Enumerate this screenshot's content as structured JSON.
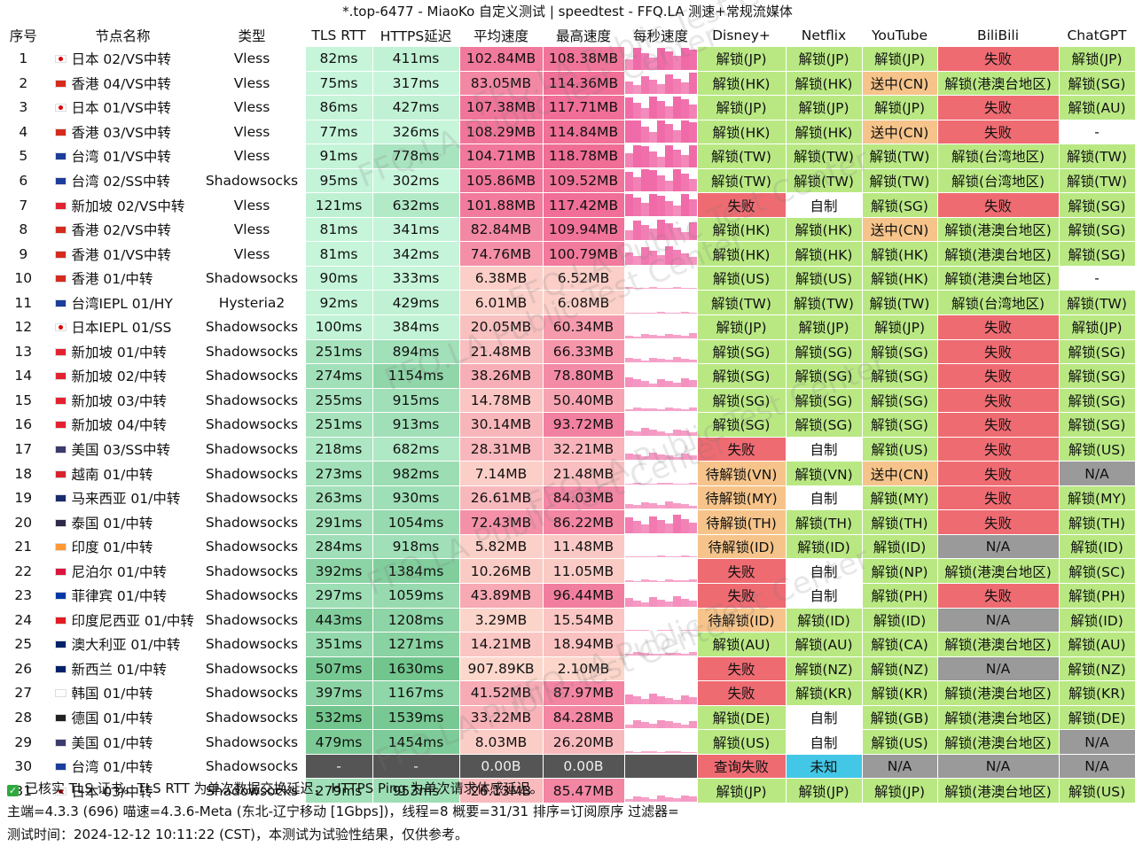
{
  "title": "*.top-6477 - MiaoKo 自定义测试 | speedtest - FFQ.LA 测速+常规流媒体",
  "headers": [
    "序号",
    "节点名称",
    "类型",
    "TLS RTT",
    "HTTPS延迟",
    "平均速度",
    "最高速度",
    "每秒速度",
    "Disney+",
    "Netflix",
    "YouTube",
    "BiliBili",
    "ChatGPT"
  ],
  "colors": {
    "green": "#b9e883",
    "red": "#ef6b72",
    "orange": "#f6c48a",
    "white": "#ffffff",
    "gray": "#9a9a9a",
    "cyan": "#43c7e6",
    "dark": "#555555"
  },
  "rows": [
    {
      "idx": "1",
      "flag": "jp",
      "name": "日本 02/VS中转",
      "type": "Vless",
      "rtt": "82ms",
      "https": "411ms",
      "avg": "102.84MB",
      "max": "108.38MB",
      "disney": "解锁(JP)",
      "netflix": "解锁(JP)",
      "youtube": "解锁(JP)",
      "bili": "失败",
      "gpt": "解锁(JP)"
    },
    {
      "idx": "2",
      "flag": "hk",
      "name": "香港 04/VS中转",
      "type": "Vless",
      "rtt": "75ms",
      "https": "317ms",
      "avg": "83.05MB",
      "max": "114.36MB",
      "disney": "解锁(HK)",
      "netflix": "解锁(HK)",
      "youtube": "送中(CN)",
      "bili": "解锁(港澳台地区)",
      "gpt": "解锁(SG)"
    },
    {
      "idx": "3",
      "flag": "jp",
      "name": "日本 01/VS中转",
      "type": "Vless",
      "rtt": "86ms",
      "https": "427ms",
      "avg": "107.38MB",
      "max": "117.71MB",
      "disney": "解锁(JP)",
      "netflix": "解锁(JP)",
      "youtube": "解锁(JP)",
      "bili": "失败",
      "gpt": "解锁(AU)"
    },
    {
      "idx": "4",
      "flag": "hk",
      "name": "香港 03/VS中转",
      "type": "Vless",
      "rtt": "77ms",
      "https": "326ms",
      "avg": "108.29MB",
      "max": "114.84MB",
      "disney": "解锁(HK)",
      "netflix": "解锁(HK)",
      "youtube": "送中(CN)",
      "bili": "失败",
      "gpt": "-"
    },
    {
      "idx": "5",
      "flag": "tw",
      "name": "台湾 01/VS中转",
      "type": "Vless",
      "rtt": "91ms",
      "https": "778ms",
      "avg": "104.71MB",
      "max": "118.78MB",
      "disney": "解锁(TW)",
      "netflix": "解锁(TW)",
      "youtube": "解锁(TW)",
      "bili": "解锁(台湾地区)",
      "gpt": "解锁(TW)"
    },
    {
      "idx": "6",
      "flag": "tw",
      "name": "台湾 02/SS中转",
      "type": "Shadowsocks",
      "rtt": "95ms",
      "https": "302ms",
      "avg": "105.86MB",
      "max": "109.52MB",
      "disney": "解锁(TW)",
      "netflix": "解锁(TW)",
      "youtube": "解锁(TW)",
      "bili": "解锁(台湾地区)",
      "gpt": "解锁(TW)"
    },
    {
      "idx": "7",
      "flag": "sg",
      "name": "新加坡 02/VS中转",
      "type": "Vless",
      "rtt": "121ms",
      "https": "632ms",
      "avg": "101.88MB",
      "max": "117.42MB",
      "disney": "失败",
      "netflix": "自制",
      "youtube": "解锁(SG)",
      "bili": "失败",
      "gpt": "解锁(SG)"
    },
    {
      "idx": "8",
      "flag": "hk",
      "name": "香港 02/VS中转",
      "type": "Vless",
      "rtt": "81ms",
      "https": "341ms",
      "avg": "82.84MB",
      "max": "109.94MB",
      "disney": "解锁(HK)",
      "netflix": "解锁(HK)",
      "youtube": "送中(CN)",
      "bili": "解锁(港澳台地区)",
      "gpt": "解锁(SG)"
    },
    {
      "idx": "9",
      "flag": "hk",
      "name": "香港 01/VS中转",
      "type": "Vless",
      "rtt": "81ms",
      "https": "342ms",
      "avg": "74.76MB",
      "max": "100.79MB",
      "disney": "解锁(HK)",
      "netflix": "解锁(HK)",
      "youtube": "解锁(HK)",
      "bili": "解锁(港澳台地区)",
      "gpt": "解锁(SG)"
    },
    {
      "idx": "10",
      "flag": "hk",
      "name": "香港 01/中转",
      "type": "Shadowsocks",
      "rtt": "90ms",
      "https": "333ms",
      "avg": "6.38MB",
      "max": "6.52MB",
      "disney": "解锁(US)",
      "netflix": "解锁(US)",
      "youtube": "解锁(HK)",
      "bili": "解锁(港澳台地区)",
      "gpt": "-"
    },
    {
      "idx": "11",
      "flag": "tw",
      "name": "台湾IEPL 01/HY",
      "type": "Hysteria2",
      "rtt": "92ms",
      "https": "429ms",
      "avg": "6.01MB",
      "max": "6.08MB",
      "disney": "解锁(TW)",
      "netflix": "解锁(TW)",
      "youtube": "解锁(TW)",
      "bili": "解锁(台湾地区)",
      "gpt": "解锁(TW)"
    },
    {
      "idx": "12",
      "flag": "jp",
      "name": "日本IEPL 01/SS",
      "type": "Shadowsocks",
      "rtt": "100ms",
      "https": "384ms",
      "avg": "20.05MB",
      "max": "60.34MB",
      "disney": "解锁(JP)",
      "netflix": "解锁(JP)",
      "youtube": "解锁(JP)",
      "bili": "失败",
      "gpt": "解锁(JP)"
    },
    {
      "idx": "13",
      "flag": "sg",
      "name": "新加坡 01/中转",
      "type": "Shadowsocks",
      "rtt": "251ms",
      "https": "894ms",
      "avg": "21.48MB",
      "max": "66.33MB",
      "disney": "解锁(SG)",
      "netflix": "解锁(SG)",
      "youtube": "解锁(SG)",
      "bili": "失败",
      "gpt": "解锁(SG)"
    },
    {
      "idx": "14",
      "flag": "sg",
      "name": "新加坡 02/中转",
      "type": "Shadowsocks",
      "rtt": "274ms",
      "https": "1154ms",
      "avg": "38.26MB",
      "max": "78.80MB",
      "disney": "解锁(SG)",
      "netflix": "解锁(SG)",
      "youtube": "解锁(SG)",
      "bili": "失败",
      "gpt": "解锁(SG)"
    },
    {
      "idx": "15",
      "flag": "sg",
      "name": "新加坡 03/中转",
      "type": "Shadowsocks",
      "rtt": "255ms",
      "https": "915ms",
      "avg": "14.78MB",
      "max": "50.40MB",
      "disney": "解锁(SG)",
      "netflix": "解锁(SG)",
      "youtube": "解锁(SG)",
      "bili": "失败",
      "gpt": "解锁(SG)"
    },
    {
      "idx": "16",
      "flag": "sg",
      "name": "新加坡 04/中转",
      "type": "Shadowsocks",
      "rtt": "251ms",
      "https": "913ms",
      "avg": "30.14MB",
      "max": "93.72MB",
      "disney": "解锁(SG)",
      "netflix": "解锁(SG)",
      "youtube": "解锁(SG)",
      "bili": "失败",
      "gpt": "解锁(SG)"
    },
    {
      "idx": "17",
      "flag": "us",
      "name": "美国 03/SS中转",
      "type": "Shadowsocks",
      "rtt": "218ms",
      "https": "682ms",
      "avg": "28.31MB",
      "max": "32.21MB",
      "disney": "失败",
      "netflix": "自制",
      "youtube": "解锁(US)",
      "bili": "失败",
      "gpt": "解锁(US)"
    },
    {
      "idx": "18",
      "flag": "vn",
      "name": "越南 01/中转",
      "type": "Shadowsocks",
      "rtt": "273ms",
      "https": "982ms",
      "avg": "7.14MB",
      "max": "21.48MB",
      "disney": "待解锁(VN)",
      "netflix": "解锁(VN)",
      "youtube": "送中(CN)",
      "bili": "失败",
      "gpt": "N/A"
    },
    {
      "idx": "19",
      "flag": "my",
      "name": "马来西亚 01/中转",
      "type": "Shadowsocks",
      "rtt": "263ms",
      "https": "930ms",
      "avg": "26.61MB",
      "max": "84.03MB",
      "disney": "待解锁(MY)",
      "netflix": "自制",
      "youtube": "解锁(MY)",
      "bili": "失败",
      "gpt": "解锁(MY)"
    },
    {
      "idx": "20",
      "flag": "th",
      "name": "泰国 01/中转",
      "type": "Shadowsocks",
      "rtt": "291ms",
      "https": "1054ms",
      "avg": "72.43MB",
      "max": "86.22MB",
      "disney": "待解锁(TH)",
      "netflix": "解锁(TH)",
      "youtube": "解锁(TH)",
      "bili": "失败",
      "gpt": "解锁(TH)"
    },
    {
      "idx": "21",
      "flag": "in",
      "name": "印度 01/中转",
      "type": "Shadowsocks",
      "rtt": "284ms",
      "https": "918ms",
      "avg": "5.82MB",
      "max": "11.48MB",
      "disney": "待解锁(ID)",
      "netflix": "解锁(ID)",
      "youtube": "解锁(ID)",
      "bili": "N/A",
      "gpt": "解锁(ID)"
    },
    {
      "idx": "22",
      "flag": "np",
      "name": "尼泊尔 01/中转",
      "type": "Shadowsocks",
      "rtt": "392ms",
      "https": "1384ms",
      "avg": "10.26MB",
      "max": "11.05MB",
      "disney": "失败",
      "netflix": "自制",
      "youtube": "解锁(NP)",
      "bili": "解锁(港澳台地区)",
      "gpt": "解锁(SC)"
    },
    {
      "idx": "23",
      "flag": "ph",
      "name": "菲律宾 01/中转",
      "type": "Shadowsocks",
      "rtt": "297ms",
      "https": "1059ms",
      "avg": "43.89MB",
      "max": "96.44MB",
      "disney": "失败",
      "netflix": "自制",
      "youtube": "解锁(PH)",
      "bili": "失败",
      "gpt": "解锁(PH)"
    },
    {
      "idx": "24",
      "flag": "id",
      "name": "印度尼西亚 01/中转",
      "type": "Shadowsocks",
      "rtt": "443ms",
      "https": "1208ms",
      "avg": "3.29MB",
      "max": "15.54MB",
      "disney": "待解锁(ID)",
      "netflix": "解锁(ID)",
      "youtube": "解锁(ID)",
      "bili": "N/A",
      "gpt": "解锁(ID)"
    },
    {
      "idx": "25",
      "flag": "au",
      "name": "澳大利亚 01/中转",
      "type": "Shadowsocks",
      "rtt": "351ms",
      "https": "1271ms",
      "avg": "14.21MB",
      "max": "18.94MB",
      "disney": "解锁(AU)",
      "netflix": "解锁(AU)",
      "youtube": "解锁(CA)",
      "bili": "解锁(港澳台地区)",
      "gpt": "解锁(AU)"
    },
    {
      "idx": "26",
      "flag": "nz",
      "name": "新西兰 01/中转",
      "type": "Shadowsocks",
      "rtt": "507ms",
      "https": "1630ms",
      "avg": "907.89KB",
      "max": "2.10MB",
      "disney": "失败",
      "netflix": "解锁(NZ)",
      "youtube": "解锁(NZ)",
      "bili": "N/A",
      "gpt": "解锁(NZ)"
    },
    {
      "idx": "27",
      "flag": "kr",
      "name": "韩国 01/中转",
      "type": "Shadowsocks",
      "rtt": "397ms",
      "https": "1167ms",
      "avg": "41.52MB",
      "max": "87.97MB",
      "disney": "失败",
      "netflix": "解锁(KR)",
      "youtube": "解锁(KR)",
      "bili": "解锁(港澳台地区)",
      "gpt": "解锁(KR)"
    },
    {
      "idx": "28",
      "flag": "de",
      "name": "德国 01/中转",
      "type": "Shadowsocks",
      "rtt": "532ms",
      "https": "1539ms",
      "avg": "33.22MB",
      "max": "84.28MB",
      "disney": "解锁(DE)",
      "netflix": "自制",
      "youtube": "解锁(GB)",
      "bili": "解锁(港澳台地区)",
      "gpt": "解锁(DE)"
    },
    {
      "idx": "29",
      "flag": "us",
      "name": "美国 01/中转",
      "type": "Shadowsocks",
      "rtt": "479ms",
      "https": "1454ms",
      "avg": "8.03MB",
      "max": "26.20MB",
      "disney": "解锁(US)",
      "netflix": "自制",
      "youtube": "解锁(US)",
      "bili": "解锁(港澳台地区)",
      "gpt": "N/A"
    },
    {
      "idx": "30",
      "flag": "tw",
      "name": "台湾 01/中转",
      "type": "Shadowsocks",
      "rtt": "-",
      "https": "-",
      "avg": "0.00B",
      "max": "0.00B",
      "disney": "查询失败",
      "netflix": "未知",
      "youtube": "N/A",
      "bili": "N/A",
      "gpt": "N/A"
    },
    {
      "idx": "31",
      "flag": "jp",
      "name": "日本 03/中转",
      "type": "Shadowsocks",
      "rtt": "279ms",
      "https": "953ms",
      "avg": "26.13MB",
      "max": "85.47MB",
      "disney": "解锁(JP)",
      "netflix": "解锁(JP)",
      "youtube": "解锁(JP)",
      "bili": "解锁(港澳台地区)",
      "gpt": "解锁(US)"
    }
  ],
  "footer": {
    "line1": "已核实 TLS 证书。TLS RTT 为单次数据交换延迟， HTTPS Ping 为单次请求体感延迟。",
    "line2": "主端=4.3.3 (696) 喵速=4.3.6-Meta (东北-辽宁移动 [1Gbps])，线程=8 概要=31/31 排序=订阅原序 过滤器=",
    "line3": "测试时间：2024-12-12 10:11:22 (CST)，本测试为试验性结果，仅供参考。"
  },
  "watermark": "FFQ.LA Public Test Center"
}
